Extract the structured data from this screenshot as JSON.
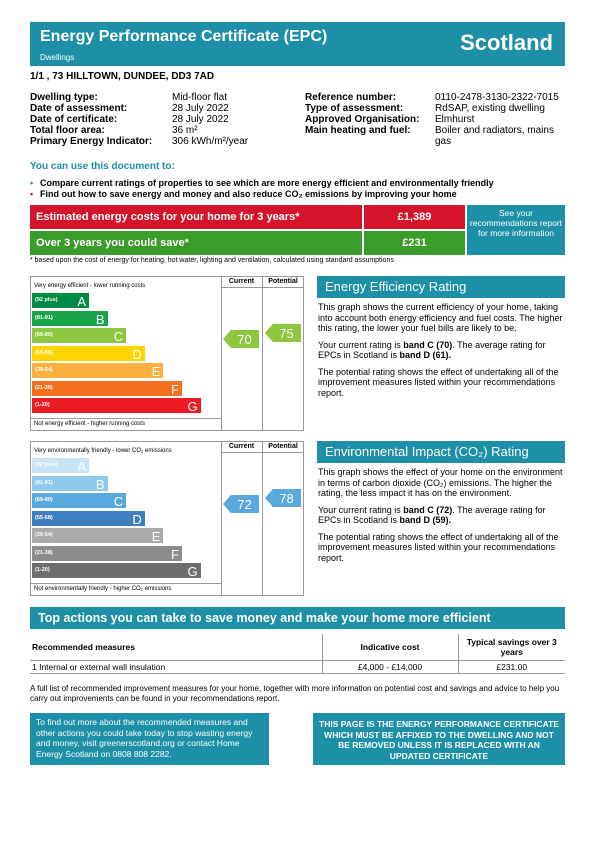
{
  "header": {
    "title": "Energy Performance Certificate (EPC)",
    "subtitle": "Dwellings",
    "region": "Scotland"
  },
  "address": "1/1 , 73 HILLTOWN, DUNDEE, DD3 7AD",
  "details_left": [
    {
      "label": "Dwelling type:",
      "value": "Mid-floor flat"
    },
    {
      "label": "Date of assessment:",
      "value": "28 July 2022"
    },
    {
      "label": "Date of certificate:",
      "value": "28 July 2022"
    },
    {
      "label": "Total floor area:",
      "value": "36 m²"
    },
    {
      "label": "Primary Energy Indicator:",
      "value": "306 kWh/m²/year"
    }
  ],
  "details_right": [
    {
      "label": "Reference number:",
      "value": "0110-2478-3130-2322-7015"
    },
    {
      "label": "Type of assessment:",
      "value": "RdSAP, existing dwelling"
    },
    {
      "label": "Approved Organisation:",
      "value": "Elmhurst"
    },
    {
      "label": "Main heating and fuel:",
      "value": "Boiler and radiators, mains gas"
    }
  ],
  "use_heading": "You can use this document to:",
  "bullets": [
    "Compare current ratings of properties to see which are more energy efficient and environmentally friendly",
    "Find out how to save energy and money and also reduce CO₂ emissions by improving your home"
  ],
  "costs": {
    "estimated_label": "Estimated energy costs for your home for 3 years*",
    "estimated_value": "£1,389",
    "saving_label": "Over 3 years you could save*",
    "saving_value": "£231",
    "see_info": "See your recommendations report for more information",
    "footnote": "* based upon the cost of energy for heating, hot water, lighting and ventilation, calculated using standard assumptions",
    "colors": {
      "estimated": "#d4142a",
      "saving": "#3a9a2a"
    }
  },
  "eer": {
    "top_text": "Very energy efficient - lower running costs",
    "bottom_text": "Not energy efficient - higher running costs",
    "col_current": "Current",
    "col_potential": "Potential",
    "bands": [
      {
        "range": "(92 plus)",
        "letter": "A",
        "color": "#008c46"
      },
      {
        "range": "(81-91)",
        "letter": "B",
        "color": "#1aa44a"
      },
      {
        "range": "(69-80)",
        "letter": "C",
        "color": "#8dc63f"
      },
      {
        "range": "(55-68)",
        "letter": "D",
        "color": "#ffd500"
      },
      {
        "range": "(39-54)",
        "letter": "E",
        "color": "#fbb040"
      },
      {
        "range": "(21-38)",
        "letter": "F",
        "color": "#f37021"
      },
      {
        "range": "(1-20)",
        "letter": "G",
        "color": "#ed1c24"
      }
    ],
    "current": "70",
    "potential": "75",
    "current_color": "#8dc63f",
    "potential_color": "#8dc63f"
  },
  "eir": {
    "top_text": "Very environmentally friendly - lower CO₂ emissions",
    "bottom_text": "Not environmentally friendly - higher CO₂ emissions",
    "col_current": "Current",
    "col_potential": "Potential",
    "bands": [
      {
        "range": "(92 plus)",
        "letter": "A",
        "color": "#c7e3f5"
      },
      {
        "range": "(81-91)",
        "letter": "B",
        "color": "#8fc9ec"
      },
      {
        "range": "(69-80)",
        "letter": "C",
        "color": "#5aa9dc"
      },
      {
        "range": "(55-68)",
        "letter": "D",
        "color": "#3d7fc1"
      },
      {
        "range": "(39-54)",
        "letter": "E",
        "color": "#aaaaaa"
      },
      {
        "range": "(21-38)",
        "letter": "F",
        "color": "#8c8c8c"
      },
      {
        "range": "(1-20)",
        "letter": "G",
        "color": "#6e6e6e"
      }
    ],
    "current": "72",
    "potential": "78",
    "current_color": "#5aa9dc",
    "potential_color": "#5aa9dc"
  },
  "eer_panel": {
    "title": "Energy Efficiency Rating",
    "p1": "This graph shows the current efficiency of your home, taking into account both energy efficiency and fuel costs. The higher this rating, the lower your fuel bills are likely to be.",
    "p2_pre": "Your current rating is ",
    "p2_band": "band C (70)",
    "p2_mid": ". The average rating for EPCs in Scotland is ",
    "p2_avg": "band D (61).",
    "p3": "The potential rating shows the effect of undertaking all of the improvement measures listed within your recommendations report."
  },
  "eir_panel": {
    "title": "Environmental Impact (CO₂) Rating",
    "p1": "This graph shows the effect of your home on the environment in terms of carbon dioxide (CO₂) emissions. The higher the rating, the less impact it has on the environment.",
    "p2_pre": "Your current rating is ",
    "p2_band": "band C (72)",
    "p2_mid": ". The average rating for EPCs in Scotland is ",
    "p2_avg": "band D (59).",
    "p3": "The potential rating shows the effect of undertaking all of the improvement measures listed within your recommendations report."
  },
  "actions": {
    "title": "Top actions you can take to save money and make your home more efficient",
    "headers": [
      "Recommended measures",
      "Indicative cost",
      "Typical savings over 3 years"
    ],
    "rows": [
      [
        "1 Internal or external wall insulation",
        "£4,000 - £14,000",
        "£231.00"
      ]
    ]
  },
  "full_list": "A full list of recommended improvement measures for your home, together with more information on potential cost and savings and advice to help you carry out improvements can be found in your recommendations report.",
  "find_out": "To find out more about the recommended measures and other actions you could take today to stop wasting energy and money, visit greenerscotland.org or contact Home Energy Scotland on 0808 808 2282.",
  "affix_notice": "THIS PAGE IS THE ENERGY PERFORMANCE CERTIFICATE WHICH MUST BE AFFIXED TO THE DWELLING AND NOT BE REMOVED UNLESS IT IS REPLACED WITH AN UPDATED CERTIFICATE"
}
